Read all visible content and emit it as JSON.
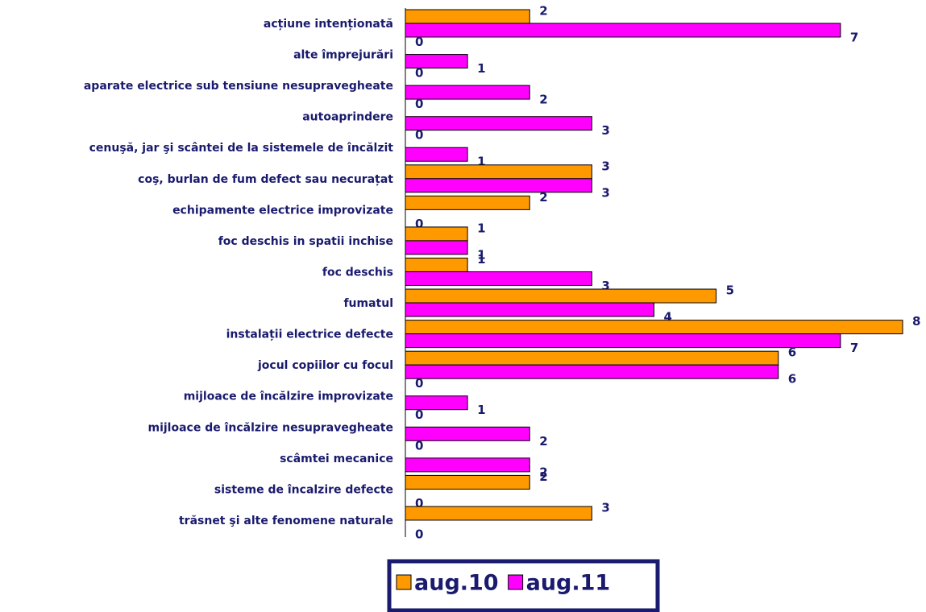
{
  "chart_data": {
    "type": "bar",
    "orientation": "horizontal",
    "categories": [
      "acțiune intenționată",
      "alte împrejurări",
      "aparate electrice sub tensiune nesupravegheate",
      "autoaprindere",
      "cenuşă, jar şi scântei de la sistemele de încălzit",
      "coş, burlan  de fum defect sau necurațat",
      "echipamente electrice improvizate",
      "foc deschis in spatii inchise",
      "foc deschis",
      "fumatul",
      "instalații electrice defecte",
      "jocul copiilor cu focul",
      "mijloace de încălzire improvizate",
      "mijloace de încălzire nesupravegheate",
      "scâmtei mecanice",
      "sisteme de încalzire defecte",
      "trăsnet şi alte fenomene naturale"
    ],
    "series": [
      {
        "name": "aug.10",
        "color": "#ff9900",
        "values": [
          2,
          0,
          0,
          0,
          0,
          3,
          2,
          1,
          1,
          5,
          8,
          6,
          0,
          0,
          0,
          2,
          3
        ]
      },
      {
        "name": "aug.11",
        "color": "#ff00ff",
        "values": [
          7,
          1,
          2,
          3,
          1,
          3,
          0,
          1,
          3,
          4,
          7,
          6,
          1,
          2,
          2,
          0,
          0
        ]
      }
    ],
    "legend": "bottom"
  }
}
